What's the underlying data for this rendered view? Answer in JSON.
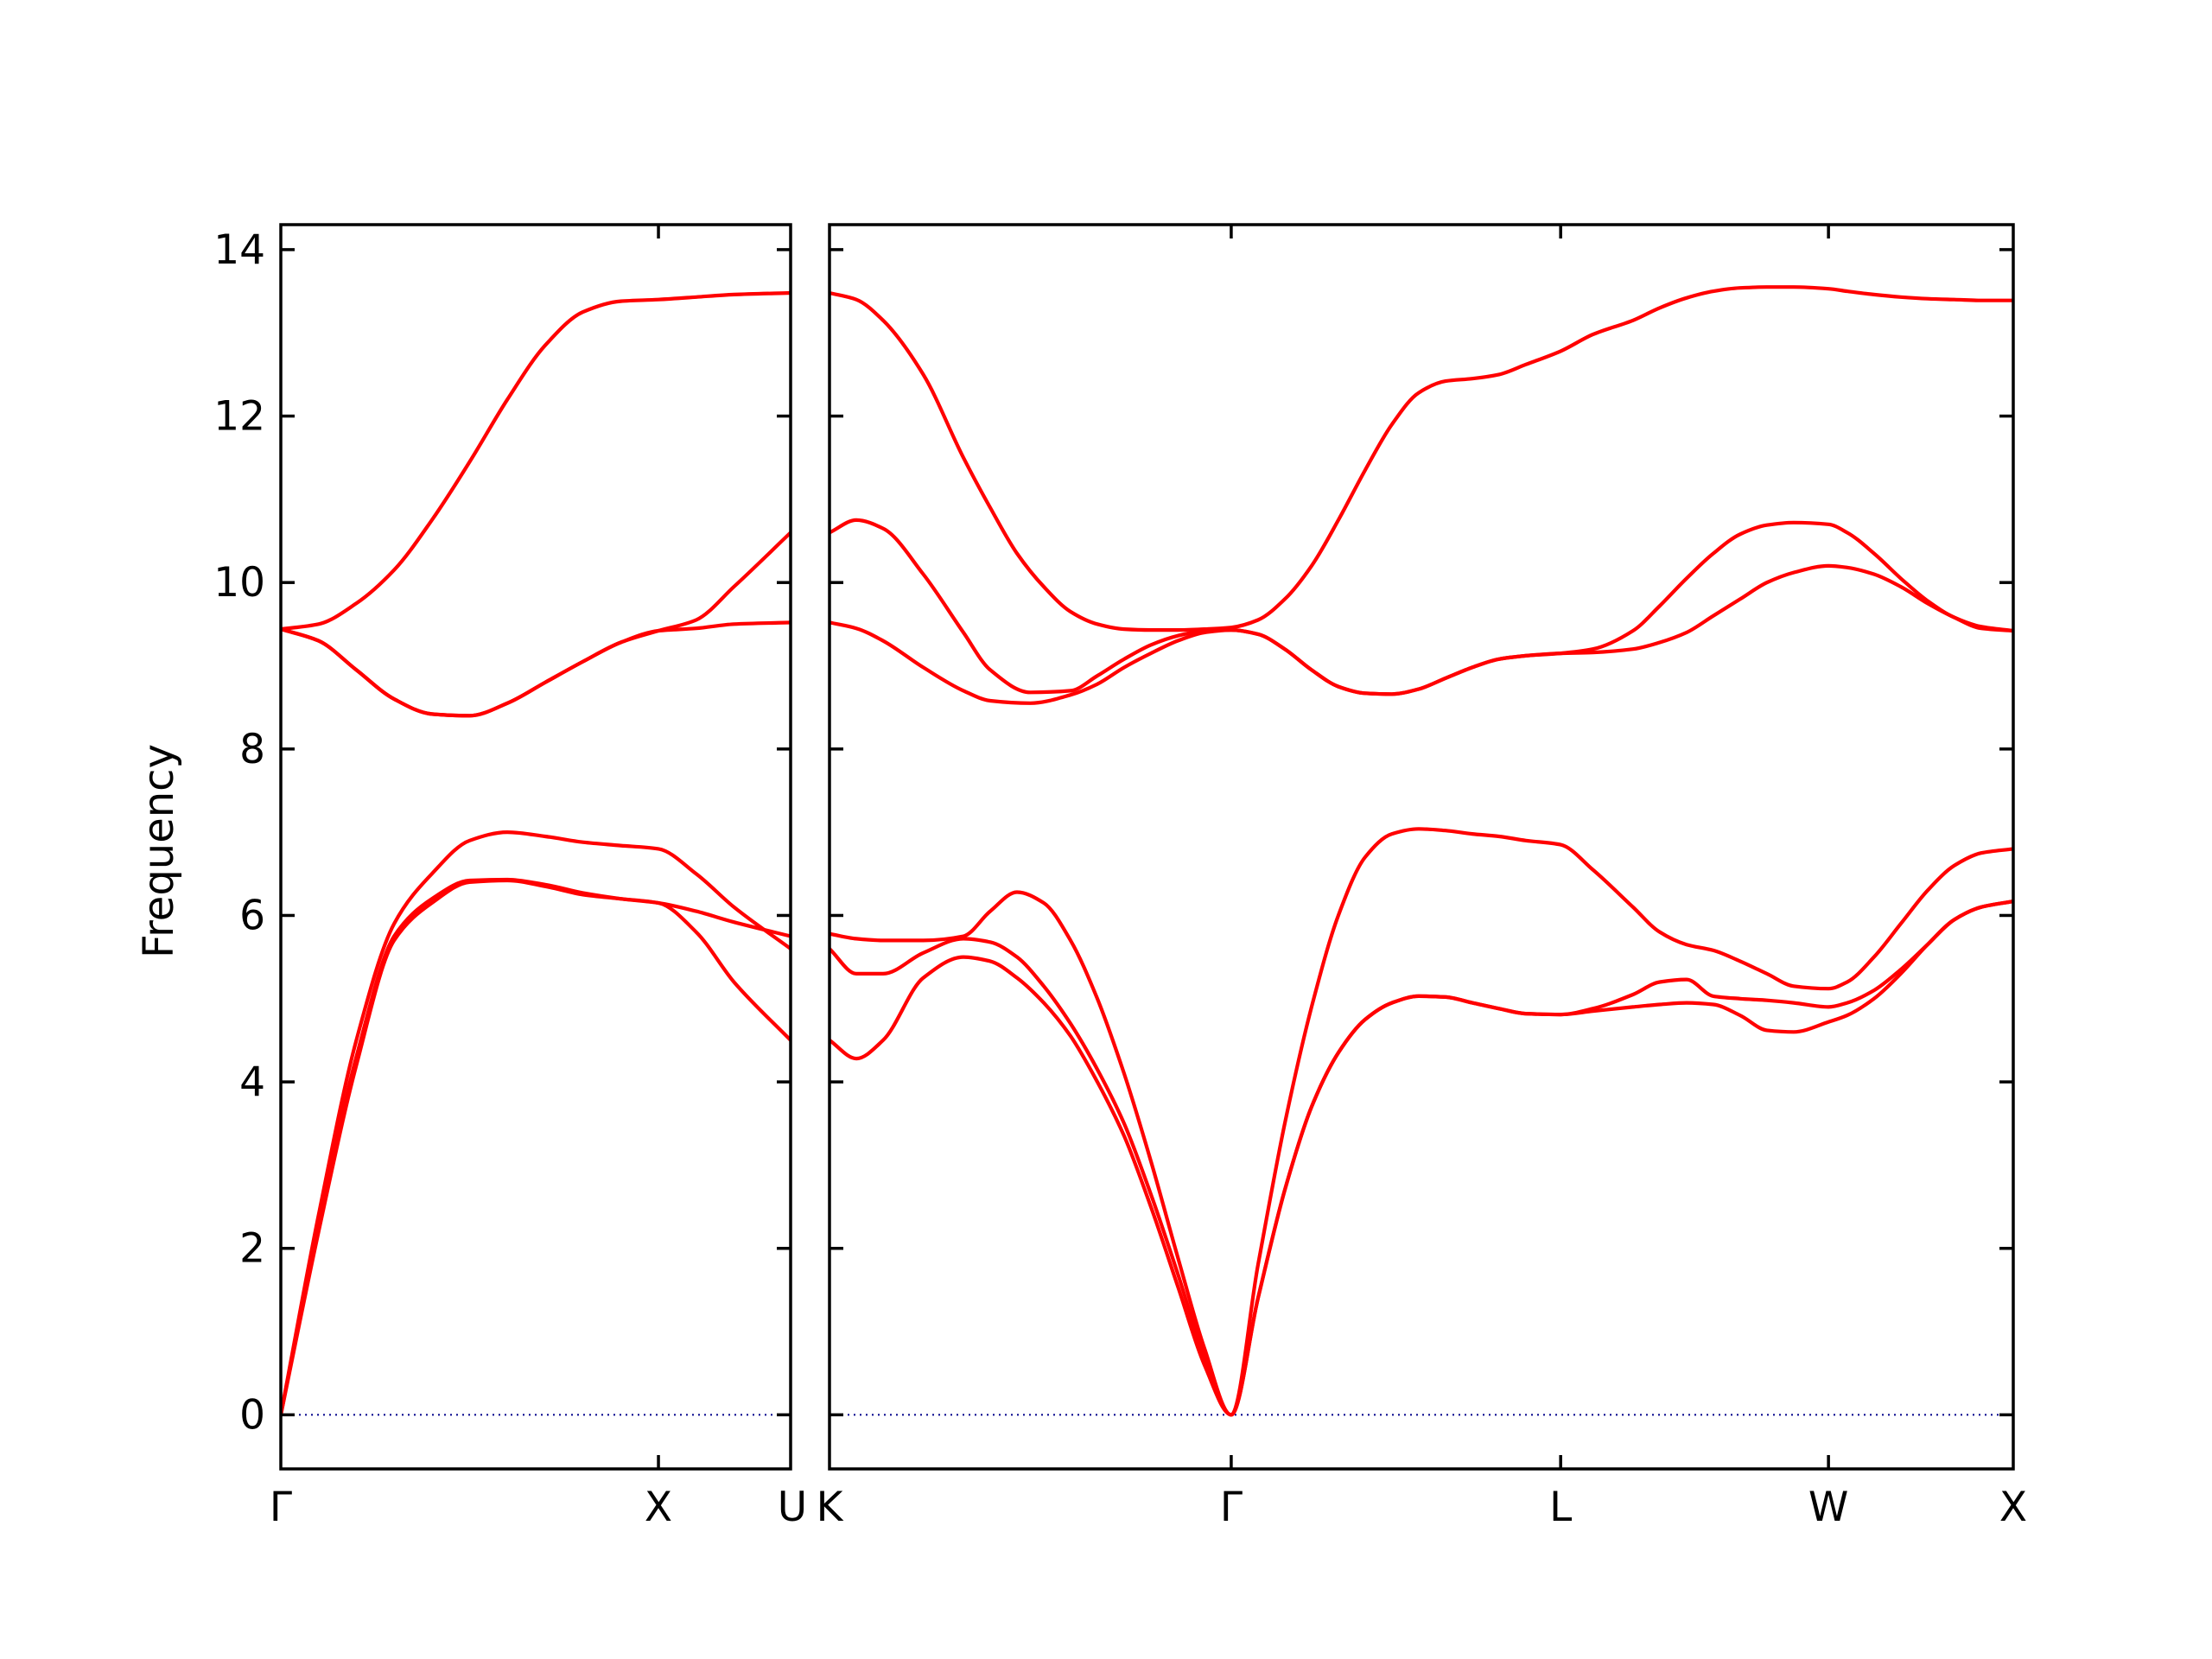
{
  "colors": {
    "band": "#ff0000",
    "zero_line": "#00008b",
    "axes": "#000000",
    "background": "#ffffff"
  },
  "chart_data": {
    "type": "line",
    "title": "",
    "xlabel": "",
    "ylabel": "Frequency",
    "ylim": [
      -0.65,
      14.3
    ],
    "yticks": [
      0,
      2,
      4,
      6,
      8,
      10,
      12,
      14
    ],
    "grid": false,
    "legend": "none",
    "zero_line": {
      "y": 0,
      "style": "dotted"
    },
    "panels": [
      {
        "id": "panel-1",
        "xlim": [
          0,
          1.35
        ],
        "xticks": [
          {
            "x": 0,
            "label": "Γ"
          },
          {
            "x": 1.0,
            "label": "X"
          },
          {
            "x": 1.35,
            "label": "U"
          }
        ],
        "bands": [
          {
            "x": [
              0,
              0.1,
              0.2,
              0.3,
              0.4,
              0.5,
              0.6,
              0.7,
              0.8,
              0.9,
              1.0,
              1.1,
              1.2,
              1.35
            ],
            "y": [
              0,
              2.2,
              4.2,
              5.7,
              6.15,
              6.4,
              6.42,
              6.35,
              6.25,
              6.2,
              6.15,
              5.8,
              5.2,
              4.5
            ]
          },
          {
            "x": [
              0,
              0.1,
              0.2,
              0.3,
              0.4,
              0.5,
              0.6,
              0.7,
              0.8,
              0.9,
              1.0,
              1.1,
              1.2,
              1.35
            ],
            "y": [
              0,
              2.4,
              4.5,
              5.9,
              6.5,
              6.9,
              7.0,
              6.95,
              6.88,
              6.84,
              6.8,
              6.5,
              6.1,
              5.6
            ]
          },
          {
            "x": [
              0,
              0.1,
              0.2,
              0.3,
              0.4,
              0.5,
              0.6,
              0.7,
              0.8,
              0.9,
              1.0,
              1.1,
              1.2,
              1.35
            ],
            "y": [
              9.44,
              9.3,
              8.95,
              8.6,
              8.42,
              8.4,
              8.55,
              8.8,
              9.05,
              9.28,
              9.42,
              9.45,
              9.5,
              9.52
            ]
          },
          {
            "x": [
              0,
              0.1,
              0.2,
              0.3,
              0.4,
              0.5,
              0.6,
              0.7,
              0.8,
              0.9,
              1.0,
              1.1,
              1.2,
              1.35
            ],
            "y": [
              9.44,
              9.5,
              9.75,
              10.15,
              10.75,
              11.45,
              12.2,
              12.85,
              13.25,
              13.38,
              13.4,
              13.43,
              13.46,
              13.48
            ]
          },
          {
            "x": [
              0,
              0.1,
              0.2,
              0.3,
              0.4,
              0.5,
              0.6,
              0.7,
              0.8,
              0.9,
              1.0,
              1.1,
              1.2,
              1.35
            ],
            "y": [
              9.44,
              9.3,
              8.95,
              8.6,
              8.42,
              8.4,
              8.55,
              8.8,
              9.05,
              9.28,
              9.42,
              9.55,
              9.95,
              10.6
            ]
          },
          {
            "x": [
              0,
              0.1,
              0.2,
              0.3,
              0.4,
              0.5,
              0.6,
              0.7,
              0.8,
              0.9,
              1.0,
              1.1,
              1.2,
              1.35
            ],
            "y": [
              0,
              2.3,
              4.3,
              5.75,
              6.2,
              6.42,
              6.43,
              6.37,
              6.27,
              6.2,
              6.15,
              6.05,
              5.92,
              5.75
            ]
          }
        ]
      },
      {
        "id": "panel-2",
        "xlim": [
          0,
          4.42
        ],
        "xticks": [
          {
            "x": 0,
            "label": "K"
          },
          {
            "x": 1.5,
            "label": "Γ"
          },
          {
            "x": 2.73,
            "label": "L"
          },
          {
            "x": 3.73,
            "label": "W"
          },
          {
            "x": 4.42,
            "label": "X"
          }
        ],
        "bands": [
          {
            "x": [
              0,
              0.1,
              0.2,
              0.35,
              0.5,
              0.6,
              0.7,
              0.8,
              0.9,
              1.0,
              1.1,
              1.2,
              1.3,
              1.4,
              1.5,
              1.6,
              1.7,
              1.8,
              1.9,
              2.0,
              2.1,
              2.2,
              2.3,
              2.4,
              2.5,
              2.6,
              2.73,
              2.85,
              3.0,
              3.1,
              3.2,
              3.3,
              3.4,
              3.5,
              3.6,
              3.73,
              3.8,
              3.9,
              4.0,
              4.1,
              4.2,
              4.3,
              4.42
            ],
            "y": [
              4.5,
              4.28,
              4.5,
              5.25,
              5.5,
              5.45,
              5.25,
              4.95,
              4.55,
              4.0,
              3.35,
              2.5,
              1.55,
              0.6,
              0,
              1.4,
              2.7,
              3.7,
              4.35,
              4.75,
              4.95,
              5.03,
              5.02,
              4.95,
              4.88,
              4.82,
              4.81,
              4.85,
              4.9,
              4.93,
              4.95,
              4.93,
              4.8,
              4.62,
              4.6,
              4.72,
              4.8,
              5.0,
              5.3,
              5.65,
              5.95,
              6.1,
              6.17
            ]
          },
          {
            "x": [
              0,
              0.1,
              0.2,
              0.35,
              0.5,
              0.6,
              0.7,
              0.8,
              0.9,
              1.0,
              1.1,
              1.2,
              1.3,
              1.4,
              1.5,
              1.6,
              1.7,
              1.8,
              1.9,
              2.0,
              2.1,
              2.2,
              2.3,
              2.4,
              2.5,
              2.6,
              2.73,
              2.85,
              3.0,
              3.1,
              3.2,
              3.3,
              3.4,
              3.5,
              3.6,
              3.73,
              3.8,
              3.9,
              4.0,
              4.1,
              4.2,
              4.3,
              4.42
            ],
            "y": [
              5.6,
              5.3,
              5.3,
              5.55,
              5.72,
              5.68,
              5.5,
              5.15,
              4.7,
              4.15,
              3.5,
              2.65,
              1.7,
              0.7,
              0,
              1.4,
              2.7,
              3.7,
              4.35,
              4.75,
              4.95,
              5.03,
              5.02,
              4.95,
              4.88,
              4.82,
              4.81,
              4.88,
              5.05,
              5.2,
              5.23,
              5.03,
              5.0,
              4.98,
              4.95,
              4.9,
              4.95,
              5.1,
              5.35,
              5.65,
              5.95,
              6.1,
              6.17
            ]
          },
          {
            "x": [
              0,
              0.1,
              0.2,
              0.35,
              0.5,
              0.6,
              0.7,
              0.8,
              0.9,
              1.0,
              1.1,
              1.2,
              1.3,
              1.4,
              1.5,
              1.6,
              1.7,
              1.8,
              1.9,
              2.0,
              2.1,
              2.2,
              2.3,
              2.4,
              2.5,
              2.6,
              2.73,
              2.85,
              3.0,
              3.1,
              3.2,
              3.3,
              3.4,
              3.5,
              3.6,
              3.73,
              3.8,
              3.9,
              4.0,
              4.1,
              4.2,
              4.3,
              4.42
            ],
            "y": [
              5.78,
              5.72,
              5.7,
              5.7,
              5.75,
              6.05,
              6.28,
              6.15,
              5.7,
              5.0,
              4.1,
              3.05,
              1.9,
              0.8,
              0,
              1.8,
              3.5,
              4.9,
              6.0,
              6.7,
              6.98,
              7.04,
              7.02,
              6.98,
              6.95,
              6.9,
              6.85,
              6.55,
              6.1,
              5.8,
              5.65,
              5.58,
              5.45,
              5.3,
              5.15,
              5.12,
              5.2,
              5.5,
              5.9,
              6.3,
              6.6,
              6.75,
              6.8
            ]
          },
          {
            "x": [
              0,
              0.1,
              0.2,
              0.35,
              0.5,
              0.6,
              0.75,
              0.9,
              1.0,
              1.1,
              1.2,
              1.3,
              1.4,
              1.5,
              1.6,
              1.7,
              1.8,
              1.9,
              2.0,
              2.1,
              2.2,
              2.3,
              2.4,
              2.5,
              2.6,
              2.73,
              2.85,
              3.0,
              3.1,
              3.2,
              3.3,
              3.4,
              3.5,
              3.6,
              3.73,
              3.8,
              3.9,
              4.0,
              4.1,
              4.2,
              4.3,
              4.42
            ],
            "y": [
              9.52,
              9.45,
              9.3,
              8.98,
              8.7,
              8.58,
              8.55,
              8.65,
              8.78,
              8.98,
              9.15,
              9.3,
              9.4,
              9.43,
              9.38,
              9.2,
              8.95,
              8.75,
              8.67,
              8.66,
              8.72,
              8.85,
              8.98,
              9.08,
              9.12,
              9.15,
              9.16,
              9.2,
              9.28,
              9.4,
              9.6,
              9.8,
              10.0,
              10.12,
              10.2,
              10.18,
              10.1,
              9.95,
              9.75,
              9.58,
              9.45,
              9.42
            ]
          },
          {
            "x": [
              0,
              0.1,
              0.2,
              0.35,
              0.5,
              0.6,
              0.75,
              0.9,
              1.0,
              1.1,
              1.2,
              1.3,
              1.4,
              1.5,
              1.6,
              1.7,
              1.8,
              1.9,
              2.0,
              2.1,
              2.2,
              2.3,
              2.4,
              2.5,
              2.6,
              2.73,
              2.85,
              3.0,
              3.1,
              3.2,
              3.3,
              3.4,
              3.5,
              3.6,
              3.73,
              3.8,
              3.9,
              4.0,
              4.1,
              4.2,
              4.3,
              4.42
            ],
            "y": [
              10.6,
              10.75,
              10.65,
              10.1,
              9.4,
              8.95,
              8.68,
              8.7,
              8.88,
              9.08,
              9.25,
              9.36,
              9.42,
              9.43,
              9.38,
              9.2,
              8.95,
              8.75,
              8.67,
              8.66,
              8.72,
              8.85,
              8.98,
              9.08,
              9.12,
              9.15,
              9.2,
              9.42,
              9.72,
              10.05,
              10.35,
              10.58,
              10.69,
              10.72,
              10.7,
              10.6,
              10.35,
              10.05,
              9.78,
              9.58,
              9.47,
              9.42
            ]
          },
          {
            "x": [
              0,
              0.1,
              0.2,
              0.35,
              0.5,
              0.6,
              0.7,
              0.8,
              0.9,
              1.0,
              1.1,
              1.2,
              1.3,
              1.4,
              1.5,
              1.6,
              1.7,
              1.8,
              1.9,
              2.0,
              2.1,
              2.2,
              2.3,
              2.4,
              2.5,
              2.6,
              2.73,
              2.85,
              3.0,
              3.1,
              3.2,
              3.3,
              3.4,
              3.5,
              3.6,
              3.73,
              3.8,
              3.9,
              4.0,
              4.1,
              4.2,
              4.3,
              4.42
            ],
            "y": [
              13.48,
              13.4,
              13.15,
              12.5,
              11.5,
              10.9,
              10.35,
              9.95,
              9.65,
              9.5,
              9.44,
              9.43,
              9.43,
              9.44,
              9.46,
              9.55,
              9.8,
              10.2,
              10.75,
              11.35,
              11.9,
              12.28,
              12.42,
              12.45,
              12.5,
              12.62,
              12.78,
              12.98,
              13.15,
              13.3,
              13.42,
              13.5,
              13.54,
              13.55,
              13.55,
              13.53,
              13.5,
              13.46,
              13.43,
              13.41,
              13.4,
              13.39,
              13.39
            ]
          }
        ]
      }
    ]
  }
}
